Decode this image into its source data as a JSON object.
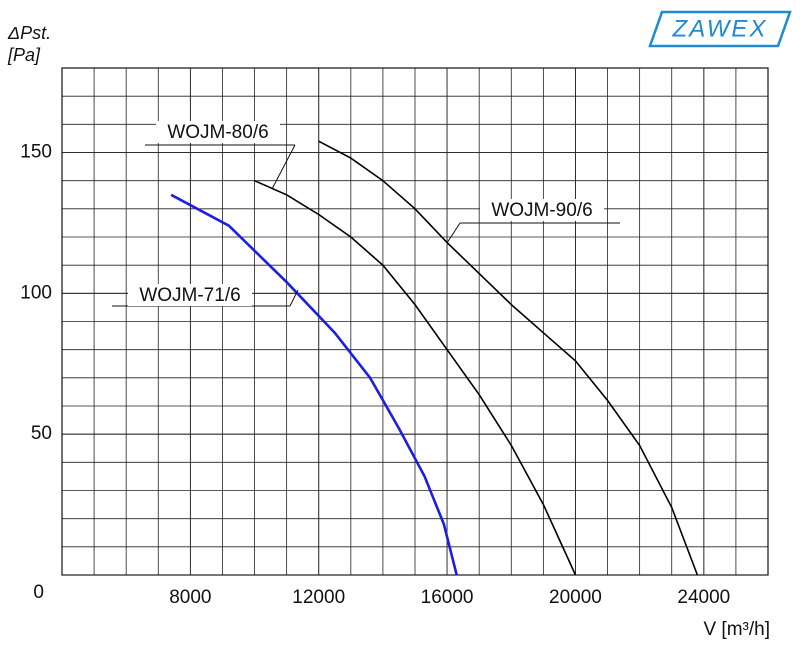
{
  "chart_data": {
    "type": "line",
    "logo": "ZAWEX",
    "y_label": [
      "ΔPst.",
      "[Pa]"
    ],
    "x_label": "V [m³/h]",
    "xlim": [
      4000,
      26000
    ],
    "ylim": [
      0,
      180
    ],
    "xticks": [
      8000,
      12000,
      16000,
      20000,
      24000
    ],
    "yticks": [
      0,
      50,
      100,
      150
    ],
    "x_grid": [
      5000,
      6000,
      7000,
      8000,
      9000,
      10000,
      11000,
      12000,
      13000,
      14000,
      15000,
      16000,
      17000,
      18000,
      19000,
      20000,
      21000,
      22000,
      23000,
      24000,
      25000
    ],
    "y_grid": [
      10,
      20,
      30,
      40,
      50,
      60,
      70,
      80,
      90,
      100,
      110,
      120,
      130,
      140,
      150,
      160,
      170
    ],
    "grid": true,
    "series": [
      {
        "name": "WOJM-71/6",
        "color": "#1c1ee0",
        "x": [
          7400,
          9200,
          11000,
          12500,
          13600,
          14500,
          15300,
          15900,
          16300
        ],
        "values": [
          135,
          124,
          104,
          86,
          70,
          52,
          35,
          18,
          0
        ]
      },
      {
        "name": "WOJM-80/6",
        "color": "#000000",
        "x": [
          10000,
          11000,
          12000,
          13000,
          14000,
          15000,
          16000,
          17000,
          18000,
          19000,
          20000
        ],
        "values": [
          140,
          135,
          128,
          120,
          110,
          96,
          80,
          64,
          46,
          25,
          0
        ]
      },
      {
        "name": "WOJM-90/6",
        "color": "#000000",
        "x": [
          12000,
          13000,
          14000,
          15000,
          16000,
          17000,
          18000,
          19000,
          20000,
          21000,
          22000,
          23000,
          23800
        ],
        "values": [
          154,
          148,
          140,
          130,
          118,
          107,
          96,
          86,
          76,
          62,
          46,
          24,
          0
        ]
      }
    ]
  }
}
